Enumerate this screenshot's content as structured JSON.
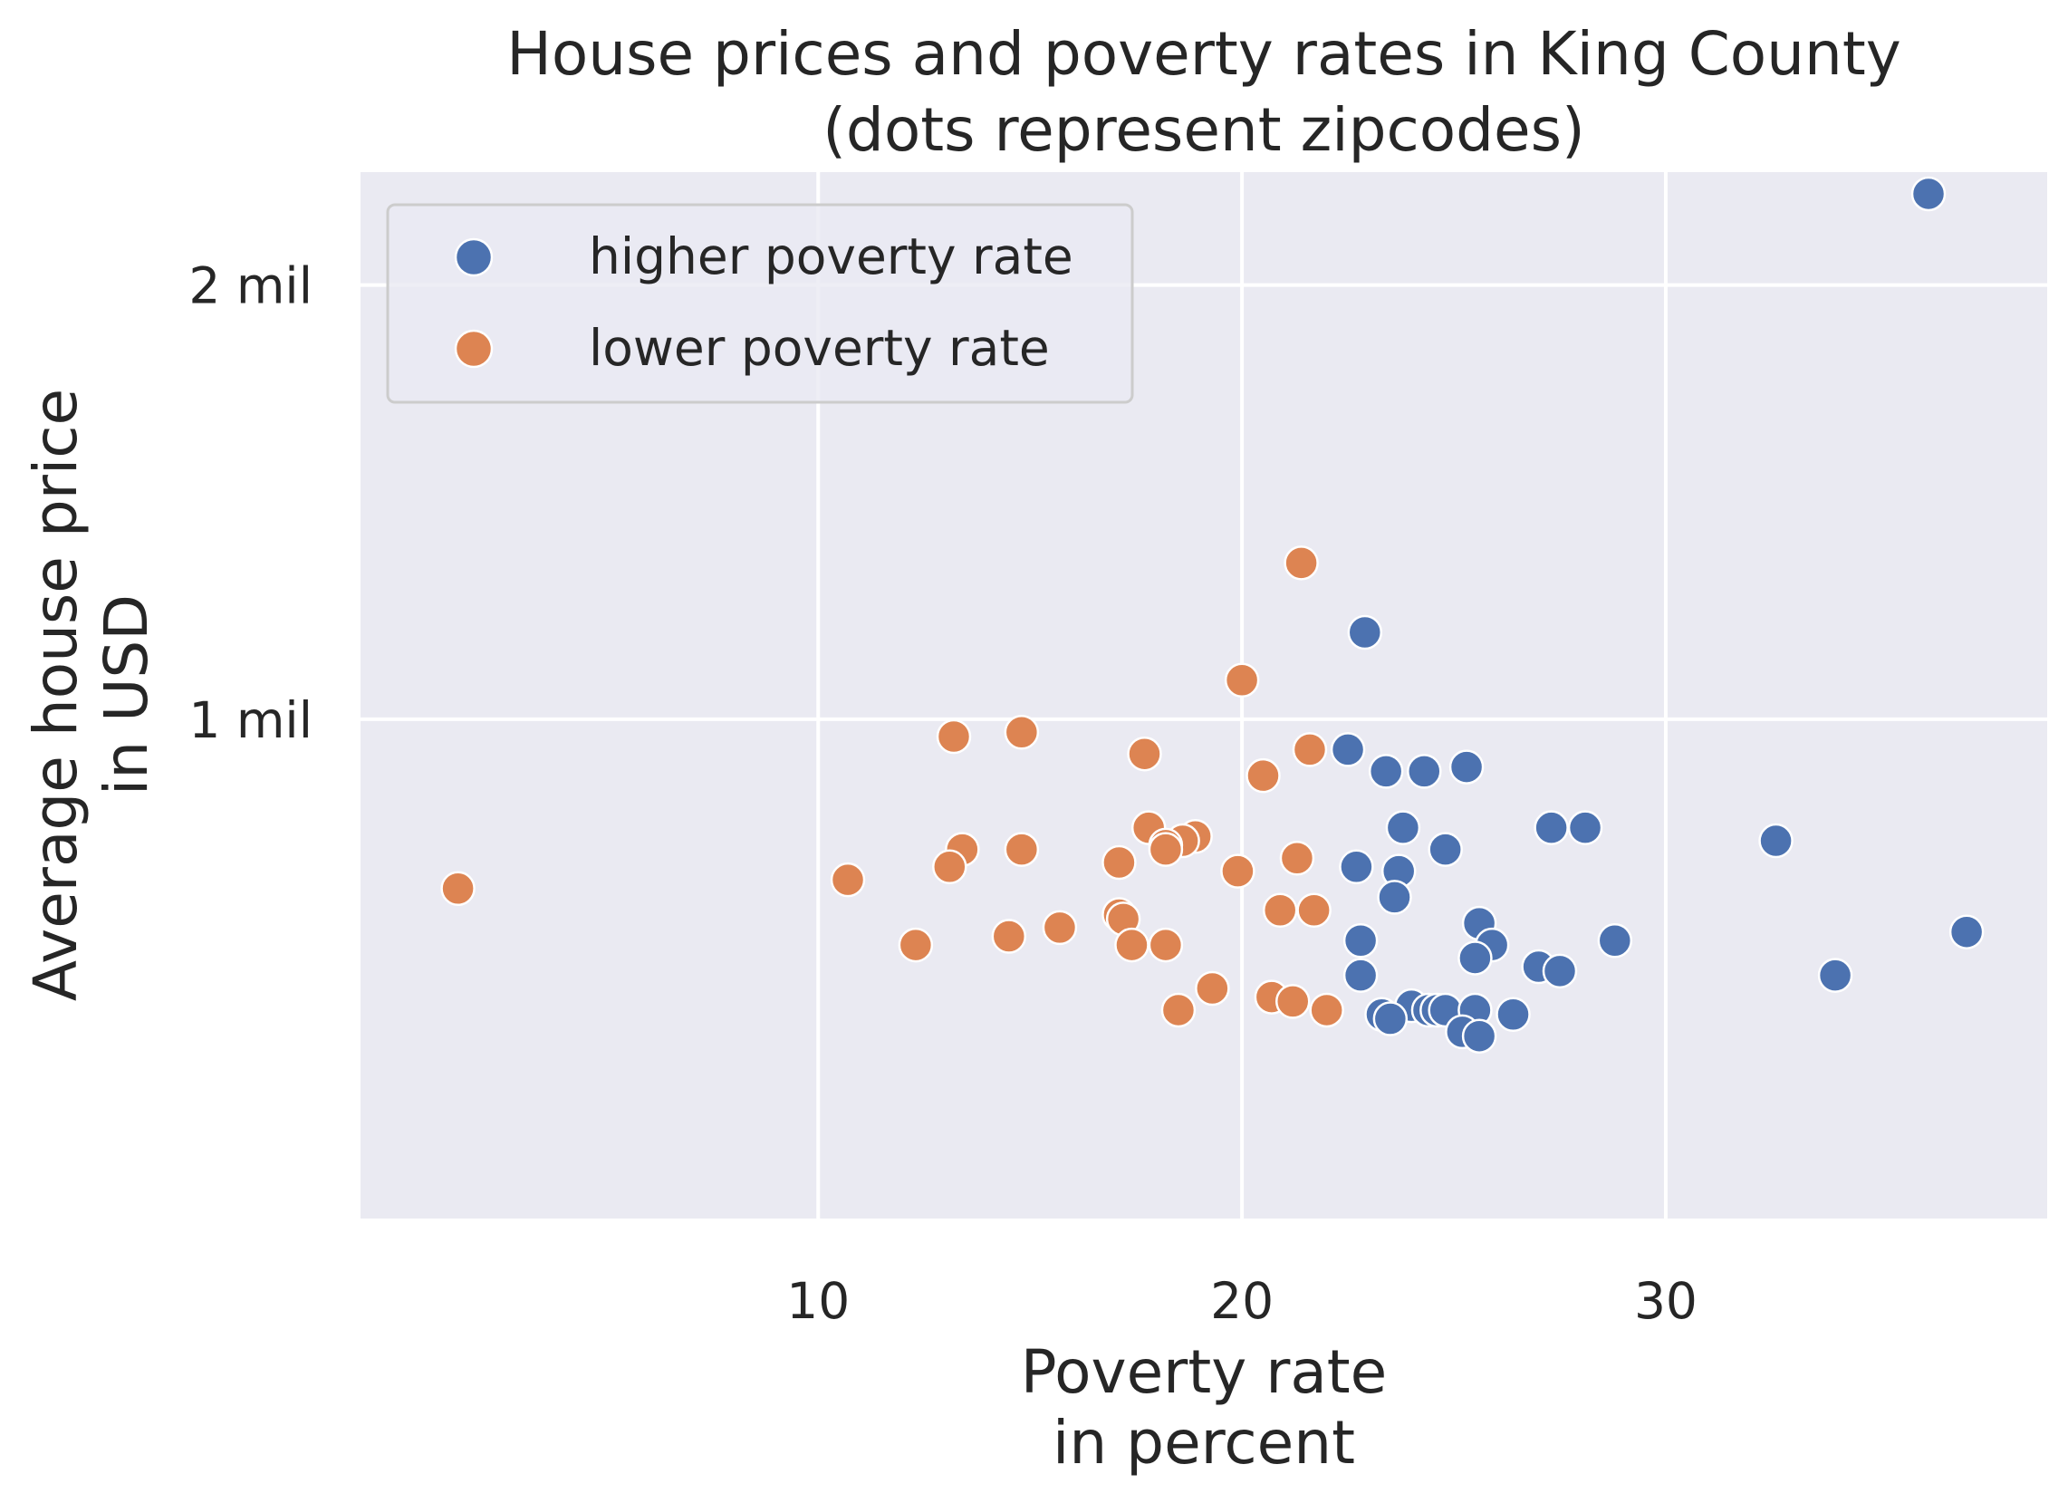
{
  "chart_data": {
    "type": "scatter",
    "title": "House prices and poverty rates in King County",
    "subtitle": "(dots represent zipcodes)",
    "xlabel": "Poverty rate",
    "xlabel_line2": "in percent",
    "ylabel": "Average house price",
    "ylabel_line2": "in USD",
    "xlim": [
      -0.8,
      39
    ],
    "ylim": [
      -0.15,
      2.26
    ],
    "y_unit": "million USD",
    "x_ticks": [
      {
        "value": 10,
        "label": "10"
      },
      {
        "value": 20,
        "label": "20"
      },
      {
        "value": 30,
        "label": "30"
      }
    ],
    "y_ticks": [
      {
        "value": 1,
        "label": "1 mil"
      },
      {
        "value": 2,
        "label": "2 mil"
      }
    ],
    "grid": true,
    "legend_position": "top-left",
    "background_color": "#eaeaf2",
    "series": [
      {
        "name": "higher poverty rate",
        "color": "#4c72b0",
        "x": [
          36.2,
          22.9,
          22.5,
          25.3,
          23.4,
          24.3,
          23.8,
          27.3,
          28.1,
          32.6,
          24.8,
          22.7,
          23.7,
          23.6,
          25.6,
          37.1,
          22.8,
          25.9,
          25.5,
          28.8,
          22.8,
          27.0,
          27.5,
          34.0,
          24.0,
          24.4,
          24.6,
          24.8,
          25.5,
          23.3,
          23.5,
          26.4,
          25.2,
          25.6
        ],
        "y": [
          2.21,
          1.2,
          0.93,
          0.89,
          0.88,
          0.88,
          0.75,
          0.75,
          0.75,
          0.72,
          0.7,
          0.66,
          0.65,
          0.59,
          0.53,
          0.51,
          0.49,
          0.48,
          0.45,
          0.49,
          0.41,
          0.43,
          0.42,
          0.41,
          0.34,
          0.33,
          0.33,
          0.33,
          0.33,
          0.32,
          0.31,
          0.32,
          0.28,
          0.27
        ]
      },
      {
        "name": "lower poverty rate",
        "color": "#dd8452",
        "x": [
          21.4,
          20.0,
          14.8,
          13.2,
          21.6,
          17.7,
          20.5,
          17.8,
          18.9,
          18.6,
          18.2,
          13.4,
          14.8,
          18.2,
          21.3,
          17.1,
          13.1,
          19.9,
          10.7,
          1.5,
          21.7,
          20.9,
          17.1,
          17.2,
          15.7,
          14.5,
          18.2,
          17.4,
          12.3,
          19.3,
          20.7,
          21.2,
          22.0,
          18.5
        ],
        "y": [
          1.36,
          1.09,
          0.97,
          0.96,
          0.93,
          0.92,
          0.87,
          0.75,
          0.73,
          0.72,
          0.71,
          0.7,
          0.7,
          0.7,
          0.68,
          0.67,
          0.66,
          0.65,
          0.63,
          0.61,
          0.56,
          0.56,
          0.55,
          0.54,
          0.52,
          0.5,
          0.48,
          0.48,
          0.48,
          0.38,
          0.36,
          0.35,
          0.33,
          0.33
        ]
      }
    ]
  }
}
